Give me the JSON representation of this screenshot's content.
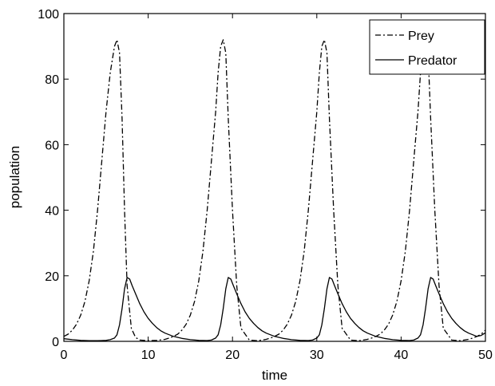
{
  "chart_data": {
    "type": "line",
    "title": "",
    "xlabel": "time",
    "ylabel": "population",
    "xlim": [
      0,
      50
    ],
    "ylim": [
      0,
      100
    ],
    "xticks": [
      0,
      10,
      20,
      30,
      40,
      50
    ],
    "yticks": [
      0,
      20,
      40,
      60,
      80,
      100
    ],
    "grid": false,
    "legend": {
      "placement": "top-right",
      "entries": [
        "Prey",
        "Predator"
      ]
    },
    "series": [
      {
        "name": "Prey",
        "style": "dash-dot",
        "color": "#000000",
        "x": [
          0,
          0.5,
          1,
          1.5,
          2,
          2.5,
          3,
          3.5,
          4,
          4.5,
          5,
          5.5,
          6,
          6.3,
          6.6,
          6.9,
          7.2,
          7.5,
          8,
          8.5,
          9,
          10,
          11,
          12,
          12.5,
          13,
          13.5,
          14,
          14.5,
          15,
          15.5,
          16,
          16.5,
          17,
          17.5,
          18,
          18.3,
          18.6,
          18.9,
          19.2,
          19.5,
          20,
          20.5,
          21,
          22,
          23,
          24,
          24.5,
          25,
          25.5,
          26,
          26.5,
          27,
          27.5,
          28,
          28.5,
          29,
          29.5,
          30,
          30.3,
          30.6,
          30.9,
          31.2,
          31.5,
          32,
          32.5,
          33,
          34,
          35,
          36,
          36.5,
          37,
          37.5,
          38,
          38.5,
          39,
          39.5,
          40,
          40.5,
          41,
          41.5,
          42,
          42.3,
          42.6,
          42.9,
          43.2,
          43.5,
          44,
          44.5,
          45,
          46,
          47,
          48,
          48.5,
          49,
          49.5,
          50
        ],
        "values": [
          1.5,
          2.2,
          3.4,
          5.2,
          8,
          12.2,
          18.5,
          27.5,
          40,
          55,
          70,
          82,
          90,
          92,
          88,
          68,
          40,
          17,
          4,
          1.2,
          0.4,
          0.2,
          0.3,
          0.6,
          1,
          1.5,
          2.2,
          3.4,
          5.2,
          8,
          12.2,
          18.5,
          27.5,
          40,
          55,
          70,
          82,
          90,
          92,
          88,
          68,
          40,
          17,
          4,
          0.4,
          0.2,
          0.6,
          1,
          1.5,
          2.2,
          3.4,
          5.2,
          8,
          12.2,
          18.5,
          27.5,
          40,
          55,
          70,
          82,
          90,
          92,
          88,
          68,
          40,
          17,
          4,
          0.4,
          0.2,
          0.6,
          1,
          1.5,
          2.2,
          3.4,
          5.2,
          8,
          12.2,
          18.5,
          27.5,
          40,
          55,
          70,
          82,
          90,
          92,
          88,
          68,
          40,
          17,
          4,
          0.4,
          0.2,
          0.6,
          1,
          1.5,
          2.2,
          3.4
        ]
      },
      {
        "name": "Predator",
        "style": "solid",
        "color": "#000000",
        "x": [
          0,
          1,
          2,
          3,
          4,
          5,
          5.5,
          6,
          6.3,
          6.6,
          6.9,
          7.2,
          7.5,
          7.8,
          8.1,
          8.5,
          9,
          9.5,
          10,
          10.5,
          11,
          11.5,
          12,
          13,
          14,
          15,
          16,
          17,
          17.5,
          18,
          18.3,
          18.6,
          18.9,
          19.2,
          19.5,
          19.8,
          20.1,
          20.5,
          21,
          21.5,
          22,
          22.5,
          23,
          23.5,
          24,
          25,
          26,
          27,
          28,
          29,
          29.5,
          30,
          30.3,
          30.6,
          30.9,
          31.2,
          31.5,
          31.8,
          32.1,
          32.5,
          33,
          33.5,
          34,
          34.5,
          35,
          35.5,
          36,
          37,
          38,
          39,
          40,
          41,
          41.5,
          42,
          42.3,
          42.6,
          42.9,
          43.2,
          43.5,
          43.8,
          44.1,
          44.5,
          45,
          45.5,
          46,
          46.5,
          47,
          47.5,
          48,
          49,
          49.5,
          50
        ],
        "values": [
          0.8,
          0.5,
          0.3,
          0.2,
          0.2,
          0.3,
          0.5,
          1,
          2,
          5,
          10,
          16,
          19.5,
          19,
          17,
          14.5,
          11.5,
          9,
          7,
          5.5,
          4.2,
          3.2,
          2.5,
          1.5,
          0.9,
          0.5,
          0.3,
          0.25,
          0.4,
          1,
          2,
          5,
          10,
          16,
          19.5,
          19,
          17,
          14.5,
          11.5,
          9,
          7,
          5.5,
          4.2,
          3.2,
          2.5,
          1.5,
          0.9,
          0.5,
          0.3,
          0.25,
          0.4,
          1,
          2,
          5,
          10,
          16,
          19.5,
          19,
          17,
          14.5,
          11.5,
          9,
          7,
          5.5,
          4.2,
          3.2,
          2.5,
          1.5,
          0.9,
          0.5,
          0.3,
          0.25,
          0.4,
          1,
          2,
          5,
          10,
          16,
          19.5,
          19,
          17,
          14.5,
          11.5,
          9,
          7,
          5.5,
          4.2,
          3.2,
          2.5,
          1.5,
          1.8,
          2.6
        ]
      }
    ]
  }
}
